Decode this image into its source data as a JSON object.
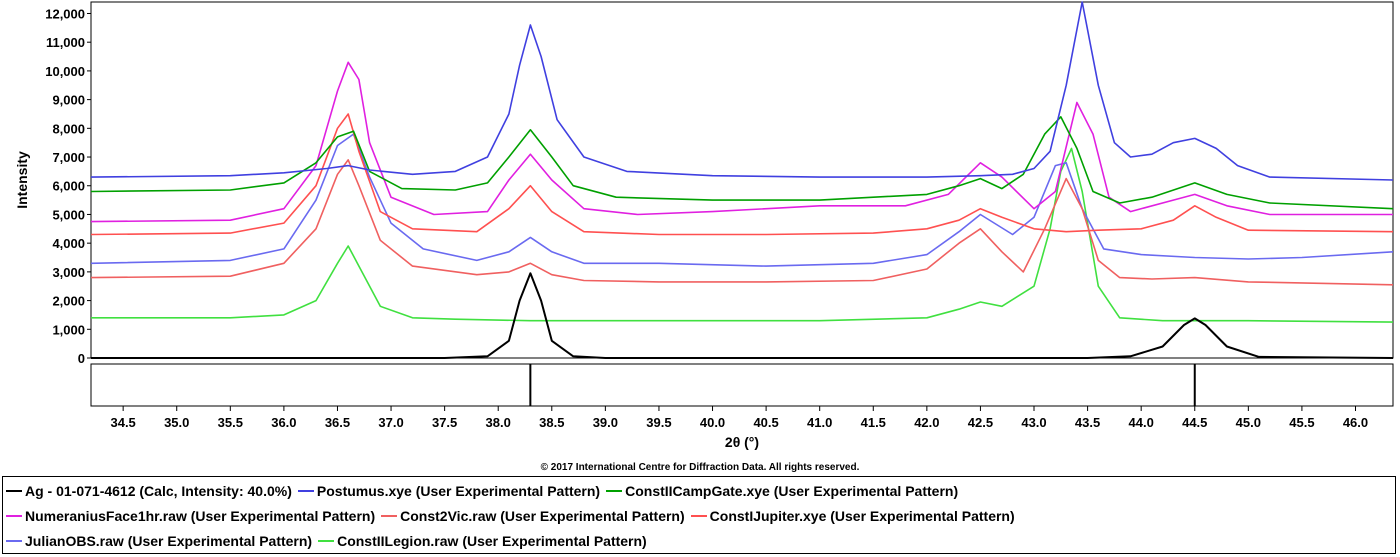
{
  "chart_data": {
    "type": "line",
    "xlabel": "2θ (°)",
    "ylabel": "Intensity",
    "xlim": [
      34.2,
      46.35
    ],
    "ylim": [
      0,
      12400
    ],
    "x_ticks": [
      "34.5",
      "35.0",
      "35.5",
      "36.0",
      "36.5",
      "37.0",
      "37.5",
      "38.0",
      "38.5",
      "39.0",
      "39.5",
      "40.0",
      "40.5",
      "41.0",
      "41.5",
      "42.0",
      "42.5",
      "43.0",
      "43.5",
      "44.0",
      "44.5",
      "45.0",
      "45.5",
      "46.0"
    ],
    "y_ticks": [
      "0",
      "1,000",
      "2,000",
      "3,000",
      "4,000",
      "5,000",
      "6,000",
      "7,000",
      "8,000",
      "9,000",
      "10,000",
      "11,000",
      "12,000"
    ],
    "grid": false,
    "legend_position": "bottom",
    "copyright": "© 2017 International Centre for Diffraction Data. All rights reserved.",
    "reference_lines": [
      38.3,
      44.5
    ],
    "series": [
      {
        "name": "Ag - 01-071-4612 (Calc, Intensity: 40.0%)",
        "color": "#000000",
        "x": [
          34.2,
          37.5,
          37.9,
          38.1,
          38.2,
          38.3,
          38.4,
          38.5,
          38.7,
          39.0,
          43.5,
          43.9,
          44.2,
          44.4,
          44.5,
          44.6,
          44.8,
          45.1,
          46.35
        ],
        "y": [
          0,
          0,
          60,
          600,
          2000,
          2950,
          2000,
          600,
          60,
          0,
          0,
          60,
          400,
          1150,
          1380,
          1150,
          400,
          40,
          0
        ]
      },
      {
        "name": "Postumus.xye (User Experimental Pattern)",
        "color": "#4040e0",
        "x": [
          34.2,
          35.5,
          36.0,
          36.4,
          36.6,
          36.8,
          37.2,
          37.6,
          37.9,
          38.1,
          38.2,
          38.3,
          38.4,
          38.55,
          38.8,
          39.2,
          40,
          41,
          42,
          42.5,
          42.8,
          43.0,
          43.15,
          43.3,
          43.45,
          43.6,
          43.75,
          43.9,
          44.1,
          44.3,
          44.5,
          44.7,
          44.9,
          45.2,
          46.35
        ],
        "y": [
          6300,
          6350,
          6450,
          6600,
          6700,
          6550,
          6400,
          6500,
          7000,
          8500,
          10200,
          11600,
          10500,
          8300,
          7000,
          6500,
          6350,
          6300,
          6300,
          6350,
          6400,
          6600,
          7200,
          9500,
          12400,
          9500,
          7500,
          7000,
          7100,
          7500,
          7650,
          7300,
          6700,
          6300,
          6200
        ]
      },
      {
        "name": "ConstIICampGate.xye (User Experimental Pattern)",
        "color": "#00a000",
        "x": [
          34.2,
          35.5,
          36.0,
          36.3,
          36.5,
          36.65,
          36.8,
          37.1,
          37.6,
          37.9,
          38.1,
          38.3,
          38.5,
          38.7,
          39.1,
          40,
          41,
          42,
          42.3,
          42.5,
          42.7,
          42.9,
          43.1,
          43.25,
          43.4,
          43.55,
          43.8,
          44.1,
          44.5,
          44.8,
          45.2,
          46.35
        ],
        "y": [
          5800,
          5850,
          6100,
          6800,
          7700,
          7900,
          6500,
          5900,
          5850,
          6100,
          7000,
          7950,
          7000,
          6000,
          5600,
          5500,
          5500,
          5700,
          6000,
          6250,
          5900,
          6400,
          7800,
          8400,
          7300,
          5800,
          5400,
          5600,
          6100,
          5700,
          5400,
          5200
        ]
      },
      {
        "name": "NumeraniusFace1hr.raw (User Experimental Pattern)",
        "color": "#e020e0",
        "x": [
          34.2,
          35.5,
          36.0,
          36.3,
          36.5,
          36.6,
          36.7,
          36.8,
          37.0,
          37.4,
          37.9,
          38.1,
          38.3,
          38.5,
          38.8,
          39.3,
          40,
          41,
          41.8,
          42.2,
          42.5,
          42.7,
          43.0,
          43.2,
          43.4,
          43.55,
          43.7,
          43.9,
          44.3,
          44.5,
          44.8,
          45.2,
          46.35
        ],
        "y": [
          4750,
          4800,
          5200,
          6700,
          9300,
          10300,
          9700,
          7500,
          5600,
          5000,
          5100,
          6200,
          7100,
          6200,
          5200,
          5000,
          5100,
          5300,
          5300,
          5700,
          6800,
          6300,
          5200,
          5800,
          8900,
          7800,
          5600,
          5100,
          5500,
          5700,
          5300,
          5000,
          5000
        ]
      },
      {
        "name": "Const2Vic.raw (User Experimental Pattern)",
        "color": "#f06060",
        "x": [
          34.2,
          35.5,
          36.0,
          36.3,
          36.5,
          36.6,
          36.7,
          36.9,
          37.2,
          37.8,
          38.1,
          38.3,
          38.5,
          38.8,
          39.5,
          40.5,
          41.5,
          42.0,
          42.3,
          42.5,
          42.7,
          42.9,
          43.1,
          43.3,
          43.45,
          43.6,
          43.8,
          44.1,
          44.5,
          45.0,
          46.35
        ],
        "y": [
          2800,
          2850,
          3300,
          4500,
          6400,
          6900,
          6000,
          4100,
          3200,
          2900,
          3000,
          3300,
          2900,
          2700,
          2650,
          2650,
          2700,
          3100,
          4000,
          4500,
          3700,
          3000,
          4500,
          6250,
          5200,
          3400,
          2800,
          2750,
          2800,
          2650,
          2550
        ]
      },
      {
        "name": "ConstIJupiter.xye (User Experimental Pattern)",
        "color": "#ff5050",
        "x": [
          34.2,
          35.5,
          36.0,
          36.3,
          36.5,
          36.6,
          36.7,
          36.9,
          37.2,
          37.8,
          38.1,
          38.3,
          38.5,
          38.8,
          39.5,
          40.5,
          41.5,
          42.0,
          42.3,
          42.5,
          42.7,
          43.0,
          43.3,
          43.6,
          44.0,
          44.3,
          44.5,
          44.7,
          45.0,
          46.35
        ],
        "y": [
          4300,
          4350,
          4700,
          6000,
          8000,
          8500,
          7200,
          5100,
          4500,
          4400,
          5200,
          6000,
          5100,
          4400,
          4300,
          4300,
          4350,
          4500,
          4800,
          5200,
          4900,
          4500,
          4400,
          4450,
          4500,
          4800,
          5300,
          4900,
          4450,
          4400
        ]
      },
      {
        "name": "JulianOBS.raw (User Experimental Pattern)",
        "color": "#6a6af0",
        "x": [
          34.2,
          35.5,
          36.0,
          36.3,
          36.5,
          36.65,
          36.8,
          37.0,
          37.3,
          37.8,
          38.1,
          38.3,
          38.5,
          38.8,
          39.5,
          40.5,
          41.5,
          42.0,
          42.3,
          42.5,
          42.8,
          43.0,
          43.2,
          43.3,
          43.45,
          43.65,
          44.0,
          44.5,
          45.0,
          45.5,
          46.35
        ],
        "y": [
          3300,
          3400,
          3800,
          5500,
          7400,
          7800,
          6300,
          4700,
          3800,
          3400,
          3700,
          4200,
          3700,
          3300,
          3300,
          3200,
          3300,
          3600,
          4400,
          5000,
          4300,
          4900,
          6700,
          6800,
          5200,
          3800,
          3600,
          3500,
          3450,
          3500,
          3700
        ]
      },
      {
        "name": "ConstIILegion.raw (User Experimental Pattern)",
        "color": "#40e040",
        "x": [
          34.2,
          35.5,
          36.0,
          36.3,
          36.5,
          36.6,
          36.7,
          36.9,
          37.2,
          37.6,
          38.3,
          39.0,
          40,
          41,
          42.0,
          42.3,
          42.5,
          42.7,
          43.0,
          43.15,
          43.25,
          43.35,
          43.45,
          43.6,
          43.8,
          44.2,
          45.0,
          46.35
        ],
        "y": [
          1400,
          1400,
          1500,
          2000,
          3300,
          3900,
          3200,
          1800,
          1400,
          1350,
          1300,
          1300,
          1300,
          1300,
          1400,
          1700,
          1950,
          1800,
          2500,
          4500,
          6500,
          7300,
          5800,
          2500,
          1400,
          1300,
          1300,
          1250
        ]
      }
    ]
  }
}
